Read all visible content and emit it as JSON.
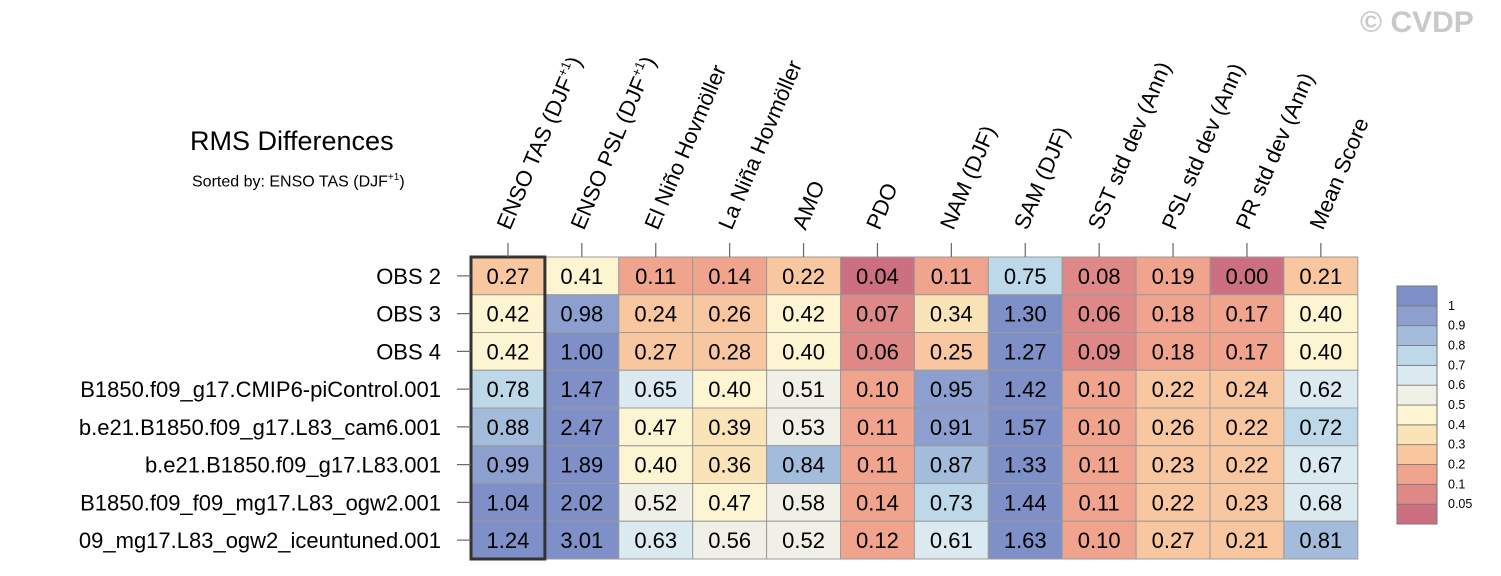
{
  "watermark": "© CVDP",
  "title": "RMS Differences",
  "subtitle": {
    "prefix": "Sorted by: ENSO TAS (DJF",
    "sup": "+1",
    "suffix": ")"
  },
  "chart_data": {
    "type": "heatmap",
    "title": "RMS Differences",
    "columns": [
      {
        "label": "ENSO TAS (DJF",
        "sup": "+1",
        "suffix": ")"
      },
      {
        "label": "ENSO PSL (DJF",
        "sup": "+1",
        "suffix": ")"
      },
      {
        "label": "El Niño Hovmöller"
      },
      {
        "label": "La Niña Hovmöller"
      },
      {
        "label": "AMO"
      },
      {
        "label": "PDO"
      },
      {
        "label": "NAM (DJF)"
      },
      {
        "label": "SAM (DJF)"
      },
      {
        "label": "SST std dev (Ann)"
      },
      {
        "label": "PSL std dev (Ann)"
      },
      {
        "label": "PR std dev (Ann)"
      },
      {
        "label": "Mean Score"
      }
    ],
    "rows": [
      "OBS 2",
      "OBS 3",
      "OBS 4",
      "B1850.f09_g17.CMIP6-piControl.001",
      "b.e21.B1850.f09_g17.L83_cam6.001",
      "b.e21.B1850.f09_g17.L83.001",
      "B1850.f09_f09_mg17.L83_ogw2.001",
      "09_mg17.L83_ogw2_iceuntuned.001"
    ],
    "values": [
      [
        "0.27",
        "0.41",
        "0.11",
        "0.14",
        "0.22",
        "0.04",
        "0.11",
        "0.75",
        "0.08",
        "0.19",
        "0.00",
        "0.21"
      ],
      [
        "0.42",
        "0.98",
        "0.24",
        "0.26",
        "0.42",
        "0.07",
        "0.34",
        "1.30",
        "0.06",
        "0.18",
        "0.17",
        "0.40"
      ],
      [
        "0.42",
        "1.00",
        "0.27",
        "0.28",
        "0.40",
        "0.06",
        "0.25",
        "1.27",
        "0.09",
        "0.18",
        "0.17",
        "0.40"
      ],
      [
        "0.78",
        "1.47",
        "0.65",
        "0.40",
        "0.51",
        "0.10",
        "0.95",
        "1.42",
        "0.10",
        "0.22",
        "0.24",
        "0.62"
      ],
      [
        "0.88",
        "2.47",
        "0.47",
        "0.39",
        "0.53",
        "0.11",
        "0.91",
        "1.57",
        "0.10",
        "0.26",
        "0.22",
        "0.72"
      ],
      [
        "0.99",
        "1.89",
        "0.40",
        "0.36",
        "0.84",
        "0.11",
        "0.87",
        "1.33",
        "0.11",
        "0.23",
        "0.22",
        "0.67"
      ],
      [
        "1.04",
        "2.02",
        "0.52",
        "0.47",
        "0.58",
        "0.14",
        "0.73",
        "1.44",
        "0.11",
        "0.22",
        "0.23",
        "0.68"
      ],
      [
        "1.24",
        "3.01",
        "0.63",
        "0.56",
        "0.52",
        "0.12",
        "0.61",
        "1.63",
        "0.10",
        "0.27",
        "0.21",
        "0.81"
      ]
    ],
    "sorted_column_index": 0,
    "colorbar": {
      "levels": [
        "0.05",
        "0.1",
        "0.2",
        "0.3",
        "0.4",
        "0.5",
        "0.6",
        "0.7",
        "0.8",
        "0.9",
        "1"
      ],
      "colors": [
        "#cc6f80",
        "#df8888",
        "#f0a48e",
        "#f8c7a0",
        "#fbe3b8",
        "#fdf4d2",
        "#f0f0e6",
        "#dbeaf0",
        "#bdd9e9",
        "#a4bcdb",
        "#8c9fcf",
        "#7f8fc7"
      ]
    },
    "grid_color": "#9a9a9a",
    "highlight_border_color": "#333333"
  }
}
